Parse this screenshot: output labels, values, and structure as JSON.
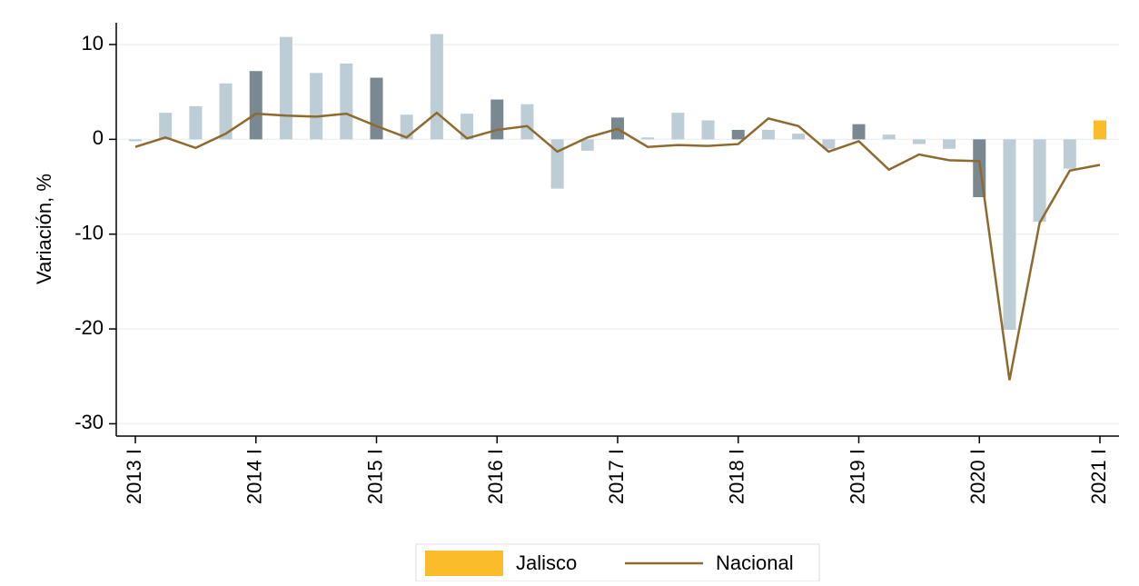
{
  "chart_data": {
    "type": "bar_line",
    "ylabel": "Variación, %",
    "categories": [
      "2013 I",
      null,
      null,
      null,
      "2014 I",
      null,
      null,
      null,
      "2015 I",
      null,
      null,
      null,
      "2016 I",
      null,
      null,
      null,
      "2017 I",
      null,
      null,
      null,
      "2018 I",
      null,
      null,
      null,
      "2019 I",
      null,
      null,
      null,
      "2020 I",
      null,
      null,
      null,
      "2021 I"
    ],
    "series": [
      {
        "name": "Jalisco",
        "type": "bar",
        "color": "#fbbc2c",
        "bar_colors": [
          "#bccdd6",
          "#bccdd6",
          "#bccdd6",
          "#bccdd6",
          "#7a8891",
          "#bccdd6",
          "#bccdd6",
          "#bccdd6",
          "#7a8891",
          "#bccdd6",
          "#bccdd6",
          "#bccdd6",
          "#7a8891",
          "#bccdd6",
          "#bccdd6",
          "#bccdd6",
          "#7a8891",
          "#bccdd6",
          "#bccdd6",
          "#bccdd6",
          "#7a8891",
          "#bccdd6",
          "#bccdd6",
          "#bccdd6",
          "#7a8891",
          "#bccdd6",
          "#bccdd6",
          "#bccdd6",
          "#7a8891",
          "#bccdd6",
          "#bccdd6",
          "#bccdd6",
          "#fbbc2c"
        ],
        "values": [
          -0.2,
          2.8,
          3.5,
          5.9,
          7.2,
          10.8,
          7.0,
          8.0,
          6.5,
          2.6,
          11.1,
          2.7,
          4.2,
          3.7,
          -5.2,
          -1.2,
          2.3,
          0.2,
          2.8,
          2.0,
          1.0,
          1.0,
          0.6,
          -1.0,
          1.6,
          0.5,
          -0.5,
          -1.0,
          -6.1,
          -20.1,
          -8.7,
          -3.1,
          2.0
        ]
      },
      {
        "name": "Nacional",
        "type": "line",
        "color": "#8f6a2e",
        "values": [
          -0.8,
          0.2,
          -0.9,
          0.6,
          2.7,
          2.5,
          2.4,
          2.7,
          1.4,
          0.2,
          2.8,
          0.1,
          1.0,
          1.4,
          -1.3,
          0.2,
          1.1,
          -0.8,
          -0.6,
          -0.7,
          -0.5,
          2.2,
          1.4,
          -1.3,
          -0.2,
          -3.2,
          -1.6,
          -2.2,
          -2.3,
          -25.4,
          -8.8,
          -3.3,
          -2.7
        ]
      }
    ],
    "ylim": [
      -31.3,
      12.3
    ],
    "yticks": [
      -30,
      -20,
      -10,
      0,
      10
    ],
    "grid": true,
    "legend": "bottom"
  }
}
